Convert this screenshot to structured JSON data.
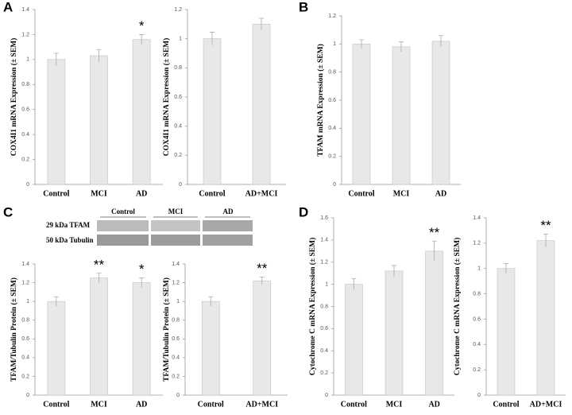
{
  "panel_labels": [
    "A",
    "B",
    "C",
    "D"
  ],
  "blot": {
    "groups": [
      "Control",
      "MCI",
      "AD"
    ],
    "rows": [
      "29 kDa TFAM",
      "50 kDa Tubulin"
    ]
  },
  "chart_data": [
    {
      "type": "bar",
      "y_label": "COX4I1 mRNA Expression (± SEM)",
      "categories": [
        "Control",
        "MCI",
        "AD"
      ],
      "values": [
        1.0,
        1.03,
        1.16
      ],
      "errors": [
        0.05,
        0.05,
        0.04
      ],
      "annotations": [
        {
          "category": "AD",
          "text": "*"
        }
      ],
      "color": "#e8e8e8",
      "ylim": [
        0,
        1.4
      ],
      "yticks": [
        0,
        0.2,
        0.4,
        0.6,
        0.8,
        1,
        1.2,
        1.4
      ]
    },
    {
      "type": "bar",
      "y_label": "COX4I1 mRNA Expression (± SEM)",
      "categories": [
        "Control",
        "AD+MCI"
      ],
      "values": [
        1.0,
        1.1
      ],
      "errors": [
        0.045,
        0.04
      ],
      "annotations": [],
      "color": "#e8e8e8",
      "ylim": [
        0,
        1.2
      ],
      "yticks": [
        0,
        0.2,
        0.4,
        0.6,
        0.8,
        1,
        1.2
      ]
    },
    {
      "type": "bar",
      "y_label": "TFAM mRNA Expression (± SEM)",
      "categories": [
        "Control",
        "MCI",
        "AD"
      ],
      "values": [
        1.0,
        0.98,
        1.02
      ],
      "errors": [
        0.03,
        0.035,
        0.04
      ],
      "annotations": [],
      "color": "#e8e8e8",
      "ylim": [
        0,
        1.2
      ],
      "yticks": [
        0,
        0.2,
        0.4,
        0.6,
        0.8,
        1,
        1.2
      ]
    },
    {
      "type": "bar",
      "y_label": "TFAM/Tubulin Protein (± SEM)",
      "categories": [
        "Control",
        "MCI",
        "AD"
      ],
      "values": [
        1.0,
        1.25,
        1.2
      ],
      "errors": [
        0.05,
        0.05,
        0.05
      ],
      "annotations": [
        {
          "category": "MCI",
          "text": "**"
        },
        {
          "category": "AD",
          "text": "*"
        }
      ],
      "color": "#e8e8e8",
      "ylim": [
        0,
        1.4
      ],
      "yticks": [
        0,
        0.2,
        0.4,
        0.6,
        0.8,
        1,
        1.2,
        1.4
      ]
    },
    {
      "type": "bar",
      "y_label": "TFAM/Tubulin Protein (± SEM)",
      "categories": [
        "Control",
        "AD+MCI"
      ],
      "values": [
        1.0,
        1.22
      ],
      "errors": [
        0.05,
        0.04
      ],
      "annotations": [
        {
          "category": "AD+MCI",
          "text": "**"
        }
      ],
      "color": "#e8e8e8",
      "ylim": [
        0,
        1.4
      ],
      "yticks": [
        0,
        0.2,
        0.4,
        0.6,
        0.8,
        1,
        1.2,
        1.4
      ]
    },
    {
      "type": "bar",
      "y_label": "Cytochrome C mRNA Expression (± SEM)",
      "categories": [
        "Control",
        "MCI",
        "AD"
      ],
      "values": [
        1.0,
        1.12,
        1.3
      ],
      "errors": [
        0.05,
        0.05,
        0.09
      ],
      "annotations": [
        {
          "category": "AD",
          "text": "**"
        }
      ],
      "color": "#e8e8e8",
      "ylim": [
        0,
        1.6
      ],
      "yticks": [
        0,
        0.2,
        0.4,
        0.6,
        0.8,
        1,
        1.2,
        1.4,
        1.6
      ]
    },
    {
      "type": "bar",
      "y_label": "Cytochrome C mRNA Expression (± SEM)",
      "categories": [
        "Control",
        "AD+MCI"
      ],
      "values": [
        1.0,
        1.22
      ],
      "errors": [
        0.04,
        0.05
      ],
      "annotations": [
        {
          "category": "AD+MCI",
          "text": "**"
        }
      ],
      "color": "#e8e8e8",
      "ylim": [
        0,
        1.4
      ],
      "yticks": [
        0,
        0.2,
        0.4,
        0.6,
        0.8,
        1,
        1.2,
        1.4
      ]
    }
  ]
}
